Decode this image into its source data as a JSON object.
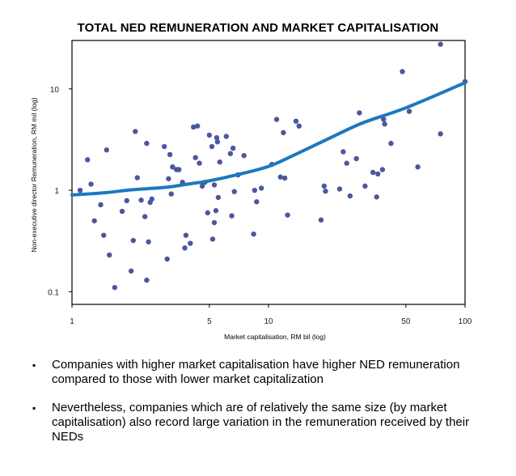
{
  "chart_data": {
    "type": "scatter",
    "title": "TOTAL NED REMUNERATION AND MARKET CAPITALISATION",
    "xlabel": "Market capitalisation, RM bil (log)",
    "ylabel": "Non-executive director Remuneration, RM mil (log)",
    "xscale": "log",
    "yscale": "log",
    "xlim": [
      1,
      100
    ],
    "ylim": [
      0.075,
      30
    ],
    "x_ticks": [
      {
        "value": 1,
        "label": "1"
      },
      {
        "value": 5,
        "label": "5"
      },
      {
        "value": 10,
        "label": "10"
      },
      {
        "value": 50,
        "label": "50"
      },
      {
        "value": 100,
        "label": "100"
      }
    ],
    "y_ticks": [
      {
        "value": 0.1,
        "label": "0.1"
      },
      {
        "value": 1,
        "label": "1"
      },
      {
        "value": 10,
        "label": "10"
      }
    ],
    "colors": {
      "points": "#4a57a0",
      "trend": "#1c78be",
      "axis": "#000000"
    },
    "series": [
      {
        "name": "Companies",
        "kind": "scatter",
        "points": [
          [
            1.1,
            1.0
          ],
          [
            1.2,
            2.0
          ],
          [
            1.25,
            1.15
          ],
          [
            1.3,
            0.5
          ],
          [
            1.4,
            0.72
          ],
          [
            1.45,
            0.36
          ],
          [
            1.5,
            2.5
          ],
          [
            1.55,
            0.23
          ],
          [
            1.65,
            0.11
          ],
          [
            1.8,
            0.62
          ],
          [
            1.9,
            0.79
          ],
          [
            2.0,
            0.16
          ],
          [
            2.05,
            0.32
          ],
          [
            2.1,
            3.8
          ],
          [
            2.15,
            1.33
          ],
          [
            2.25,
            0.8
          ],
          [
            2.35,
            0.55
          ],
          [
            2.4,
            0.13
          ],
          [
            2.4,
            2.9
          ],
          [
            2.45,
            0.31
          ],
          [
            2.5,
            0.76
          ],
          [
            2.55,
            0.82
          ],
          [
            2.95,
            2.7
          ],
          [
            3.05,
            0.21
          ],
          [
            3.1,
            1.3
          ],
          [
            3.15,
            2.25
          ],
          [
            3.2,
            0.92
          ],
          [
            3.25,
            1.7
          ],
          [
            3.4,
            1.6
          ],
          [
            3.5,
            1.6
          ],
          [
            3.65,
            1.2
          ],
          [
            3.75,
            0.27
          ],
          [
            3.8,
            0.36
          ],
          [
            4.0,
            0.3
          ],
          [
            4.15,
            4.2
          ],
          [
            4.25,
            2.1
          ],
          [
            4.35,
            4.3
          ],
          [
            4.45,
            1.85
          ],
          [
            4.6,
            1.1
          ],
          [
            4.75,
            1.2
          ],
          [
            4.9,
            0.6
          ],
          [
            5.0,
            3.5
          ],
          [
            5.15,
            2.7
          ],
          [
            5.2,
            0.33
          ],
          [
            5.3,
            0.48
          ],
          [
            5.3,
            1.13
          ],
          [
            5.4,
            0.63
          ],
          [
            5.45,
            3.3
          ],
          [
            5.5,
            3.0
          ],
          [
            5.55,
            0.85
          ],
          [
            5.65,
            1.9
          ],
          [
            6.1,
            3.4
          ],
          [
            6.4,
            2.3
          ],
          [
            6.5,
            0.56
          ],
          [
            6.6,
            2.6
          ],
          [
            6.7,
            0.97
          ],
          [
            7.0,
            1.42
          ],
          [
            7.5,
            2.2
          ],
          [
            8.4,
            0.37
          ],
          [
            8.5,
            1.0
          ],
          [
            8.7,
            0.77
          ],
          [
            9.2,
            1.05
          ],
          [
            10.4,
            1.8
          ],
          [
            11.0,
            5.0
          ],
          [
            11.5,
            1.35
          ],
          [
            11.9,
            3.7
          ],
          [
            12.1,
            1.32
          ],
          [
            12.5,
            0.57
          ],
          [
            13.8,
            4.8
          ],
          [
            14.3,
            4.3
          ],
          [
            18.5,
            0.51
          ],
          [
            19.2,
            1.1
          ],
          [
            19.5,
            0.98
          ],
          [
            23.0,
            1.03
          ],
          [
            24.0,
            2.4
          ],
          [
            25.0,
            1.85
          ],
          [
            26.0,
            0.88
          ],
          [
            28.0,
            2.05
          ],
          [
            29.0,
            5.8
          ],
          [
            31.0,
            1.1
          ],
          [
            34.0,
            1.5
          ],
          [
            35.5,
            0.86
          ],
          [
            36.0,
            1.45
          ],
          [
            38.0,
            1.6
          ],
          [
            38.5,
            5.0
          ],
          [
            39.0,
            4.5
          ],
          [
            42.0,
            2.9
          ],
          [
            48.0,
            14.8
          ],
          [
            52.0,
            6.0
          ],
          [
            57.5,
            1.7
          ],
          [
            75.0,
            3.6
          ],
          [
            75.0,
            27.5
          ],
          [
            100.0,
            11.8
          ]
        ]
      },
      {
        "name": "Trend",
        "kind": "line",
        "points": [
          [
            1,
            0.9
          ],
          [
            1.5,
            0.95
          ],
          [
            2,
            1.01
          ],
          [
            3,
            1.07
          ],
          [
            4,
            1.16
          ],
          [
            5,
            1.24
          ],
          [
            7,
            1.43
          ],
          [
            10,
            1.72
          ],
          [
            13,
            2.15
          ],
          [
            20,
            3.2
          ],
          [
            30,
            4.6
          ],
          [
            50,
            6.5
          ],
          [
            100,
            11.5
          ]
        ]
      }
    ]
  },
  "bullets": [
    "Companies with higher market capitalisation have higher NED remuneration compared to those with lower market capitalization",
    "Nevertheless, companies which are of relatively the same size (by market capitalisation) also record large variation in the remuneration received by their NEDs"
  ],
  "bullet_marker": "▪"
}
